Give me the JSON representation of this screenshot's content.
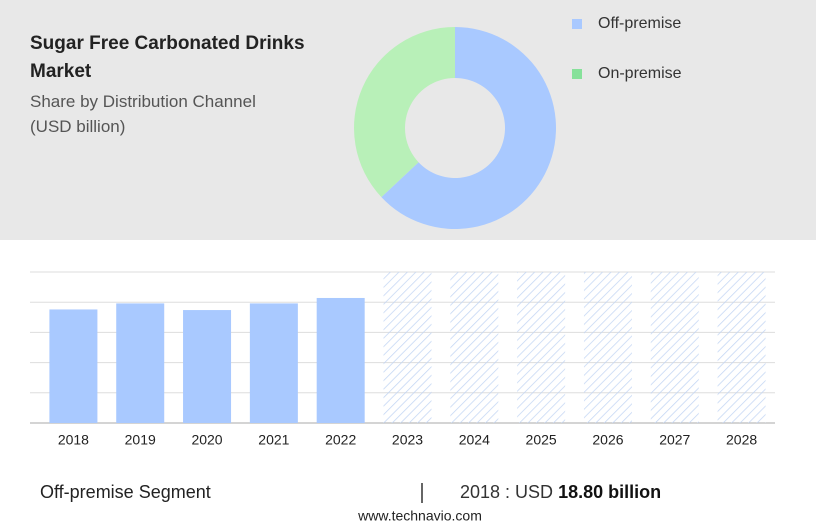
{
  "chart_data": [
    {
      "type": "pie",
      "title": "Sugar Free Carbonated Drinks Market",
      "subtitle": "Share by Distribution Channel (USD billion)",
      "categories": [
        "Off-premise",
        "On-premise"
      ],
      "values": [
        63,
        37
      ],
      "colors": [
        "#a9c9ff",
        "#b8f0b8"
      ],
      "legend_colors": [
        "#a9c9ff",
        "#86e19a"
      ],
      "donut": true
    },
    {
      "type": "bar",
      "categories": [
        "2018",
        "2019",
        "2020",
        "2021",
        "2022",
        "2023",
        "2024",
        "2025",
        "2026",
        "2027",
        "2028"
      ],
      "values": [
        18.8,
        19.8,
        18.7,
        19.8,
        20.7,
        null,
        null,
        null,
        null,
        null,
        null
      ],
      "color": "#a9c9ff",
      "ylim": [
        0,
        25
      ],
      "yticks": [
        0,
        5,
        10,
        15,
        20,
        25
      ],
      "grid": true
    }
  ],
  "footer": {
    "segment": "Off-premise Segment",
    "stat_prefix": "2018 : USD",
    "stat_value": "18.80 billion",
    "source": "www.technavio.com"
  }
}
